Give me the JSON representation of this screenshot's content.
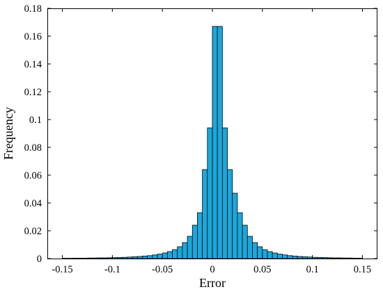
{
  "chart_data": {
    "type": "bar",
    "title": "",
    "xlabel": "Error",
    "ylabel": "Frequency",
    "xlim": [
      -0.165,
      0.165
    ],
    "ylim": [
      0,
      0.18
    ],
    "bin_width": 0.005,
    "bar_color": "#1ba8dc",
    "grid": false,
    "legend": "none",
    "x_ticks": [
      "-0.15",
      "-0.1",
      "-0.05",
      "0",
      "0.05",
      "0.1",
      "0.15"
    ],
    "y_ticks": [
      "0",
      "0.02",
      "0.04",
      "0.06",
      "0.08",
      "0.1",
      "0.12",
      "0.14",
      "0.16",
      "0.18"
    ],
    "bins": [
      {
        "x": -0.1475,
        "y": 0.0002
      },
      {
        "x": -0.1425,
        "y": 0.0002
      },
      {
        "x": -0.1375,
        "y": 0.0003
      },
      {
        "x": -0.1325,
        "y": 0.0003
      },
      {
        "x": -0.1275,
        "y": 0.0003
      },
      {
        "x": -0.1225,
        "y": 0.0004
      },
      {
        "x": -0.1175,
        "y": 0.0004
      },
      {
        "x": -0.1125,
        "y": 0.0005
      },
      {
        "x": -0.1075,
        "y": 0.0005
      },
      {
        "x": -0.1025,
        "y": 0.0006
      },
      {
        "x": -0.0975,
        "y": 0.0007
      },
      {
        "x": -0.0925,
        "y": 0.0008
      },
      {
        "x": -0.0875,
        "y": 0.0009
      },
      {
        "x": -0.0825,
        "y": 0.0011
      },
      {
        "x": -0.0775,
        "y": 0.0013
      },
      {
        "x": -0.0725,
        "y": 0.0015
      },
      {
        "x": -0.0675,
        "y": 0.0018
      },
      {
        "x": -0.0625,
        "y": 0.0021
      },
      {
        "x": -0.0575,
        "y": 0.0026
      },
      {
        "x": -0.0525,
        "y": 0.0032
      },
      {
        "x": -0.0475,
        "y": 0.004
      },
      {
        "x": -0.0425,
        "y": 0.005
      },
      {
        "x": -0.0375,
        "y": 0.0064
      },
      {
        "x": -0.0325,
        "y": 0.0085
      },
      {
        "x": -0.0275,
        "y": 0.0115
      },
      {
        "x": -0.0225,
        "y": 0.016
      },
      {
        "x": -0.0175,
        "y": 0.024
      },
      {
        "x": -0.0125,
        "y": 0.033
      },
      {
        "x": -0.0075,
        "y": 0.064
      },
      {
        "x": -0.0025,
        "y": 0.094
      },
      {
        "x": 0.0025,
        "y": 0.167
      },
      {
        "x": 0.0075,
        "y": 0.167
      },
      {
        "x": 0.0125,
        "y": 0.094
      },
      {
        "x": 0.0175,
        "y": 0.064
      },
      {
        "x": 0.0225,
        "y": 0.047
      },
      {
        "x": 0.0275,
        "y": 0.033
      },
      {
        "x": 0.0325,
        "y": 0.024
      },
      {
        "x": 0.0375,
        "y": 0.016
      },
      {
        "x": 0.0425,
        "y": 0.0115
      },
      {
        "x": 0.0475,
        "y": 0.0085
      },
      {
        "x": 0.0525,
        "y": 0.0064
      },
      {
        "x": 0.0575,
        "y": 0.005
      },
      {
        "x": 0.0625,
        "y": 0.004
      },
      {
        "x": 0.0675,
        "y": 0.0032
      },
      {
        "x": 0.0725,
        "y": 0.0026
      },
      {
        "x": 0.0775,
        "y": 0.0021
      },
      {
        "x": 0.0825,
        "y": 0.0018
      },
      {
        "x": 0.0875,
        "y": 0.0015
      },
      {
        "x": 0.0925,
        "y": 0.0013
      },
      {
        "x": 0.0975,
        "y": 0.0011
      },
      {
        "x": 0.1025,
        "y": 0.0009
      },
      {
        "x": 0.1075,
        "y": 0.0008
      },
      {
        "x": 0.1125,
        "y": 0.0007
      },
      {
        "x": 0.1175,
        "y": 0.0006
      },
      {
        "x": 0.1225,
        "y": 0.0005
      },
      {
        "x": 0.1275,
        "y": 0.0005
      },
      {
        "x": 0.1325,
        "y": 0.0004
      },
      {
        "x": 0.1375,
        "y": 0.0004
      },
      {
        "x": 0.1425,
        "y": 0.0003
      },
      {
        "x": 0.1475,
        "y": 0.0003
      }
    ]
  }
}
